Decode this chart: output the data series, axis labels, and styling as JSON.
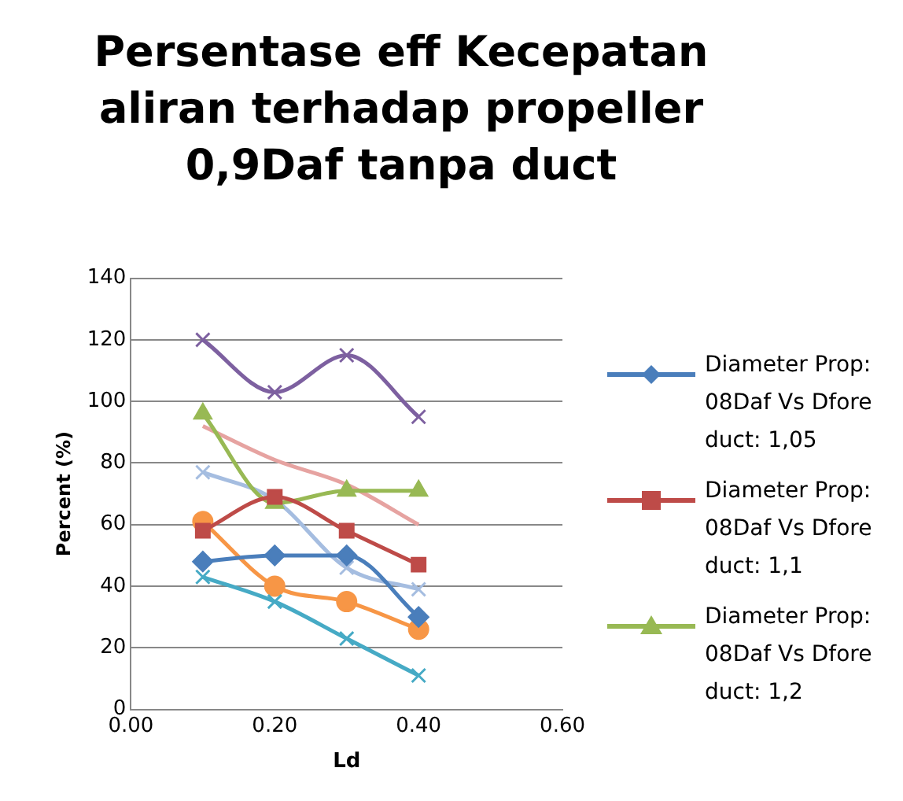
{
  "chart_data": {
    "type": "line",
    "title": "Persentase eff Kecepatan aliran terhadap propeller 0,9Daf tanpa duct",
    "xlabel": "Ld",
    "ylabel": "Percent (%)",
    "x": [
      0.1,
      0.2,
      0.3,
      0.4
    ],
    "xlim": [
      0,
      0.6
    ],
    "xticks": [
      {
        "value": 0,
        "label": "0.00"
      },
      {
        "value": 0.2,
        "label": "0.20"
      },
      {
        "value": 0.4,
        "label": "0.40"
      },
      {
        "value": 0.6,
        "label": "0.60"
      }
    ],
    "ylim": [
      0,
      140
    ],
    "yticks": [
      0,
      20,
      40,
      60,
      80,
      100,
      120,
      140
    ],
    "grid": "y",
    "legend": "right",
    "series": [
      {
        "name": "Diameter Prop: 08Daf Vs Dfore duct: 1,05",
        "color": "#4a7ebb",
        "marker": "diamond",
        "values": [
          48,
          50,
          50,
          30
        ]
      },
      {
        "name": "Diameter Prop: 08Daf Vs Dfore duct: 1,1",
        "color": "#be4b48",
        "marker": "square",
        "values": [
          58,
          69,
          58,
          47
        ]
      },
      {
        "name": "Diameter Prop: 08Daf Vs Dfore duct: 1,2",
        "color": "#98b954",
        "marker": "triangle",
        "values": [
          96,
          67,
          71,
          71
        ]
      },
      {
        "color": "#7d60a0",
        "marker": "cross",
        "values": [
          120,
          103,
          115,
          95
        ]
      },
      {
        "color": "#46aac5",
        "marker": "cross",
        "values": [
          43,
          35,
          23,
          11
        ]
      },
      {
        "color": "#f79646",
        "marker": "circle",
        "values": [
          61,
          40,
          35,
          26
        ]
      },
      {
        "color": "#a5bde0",
        "marker": "cross",
        "values": [
          77,
          68,
          46,
          39
        ]
      },
      {
        "color": "#e6a3a1",
        "marker": "none",
        "values": [
          92,
          81,
          73,
          60
        ]
      }
    ]
  }
}
